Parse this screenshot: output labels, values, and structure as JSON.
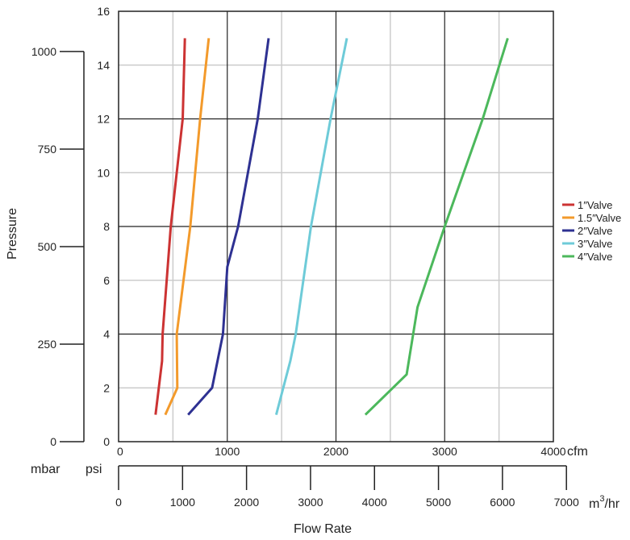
{
  "chart_data": {
    "type": "line",
    "xlabel": "Flow Rate",
    "ylabel": "Pressure",
    "x_unit": "cfm",
    "y_unit": "psi",
    "xlim": [
      0,
      4000
    ],
    "ylim": [
      0,
      16
    ],
    "grid": true,
    "legend_position": "right",
    "x_ticks": [
      "0",
      "1000",
      "2000",
      "3000",
      "4000"
    ],
    "y_ticks": [
      "0",
      "2",
      "4",
      "6",
      "8",
      "10",
      "12",
      "14",
      "16"
    ],
    "secondary_x_axis": {
      "unit": "m³/hr",
      "unit_base": "m",
      "unit_sup": "3",
      "unit_tail": "/hr",
      "ticks": [
        0,
        1000,
        2000,
        3000,
        4000,
        5000,
        6000,
        7000
      ],
      "tick_labels": [
        "0",
        "1000",
        "2000",
        "3000",
        "4000",
        "5000",
        "6000",
        "7000"
      ],
      "cfm_per_unit": 0.5886
    },
    "secondary_y_axis": {
      "unit": "mbar",
      "ticks": [
        0,
        250,
        500,
        750,
        1000
      ],
      "tick_labels": [
        "0",
        "250",
        "500",
        "750",
        "1000"
      ],
      "psi_per_unit": 0.0145038
    },
    "series": [
      {
        "name": "1″Valve",
        "color": "#cc3333",
        "x": [
          340,
          400,
          405,
          480,
          590,
          610
        ],
        "y": [
          1,
          3,
          4,
          8,
          12,
          15
        ]
      },
      {
        "name": "1.5″Valve",
        "color": "#f39a2b",
        "x": [
          430,
          540,
          535,
          660,
          750,
          830
        ],
        "y": [
          1,
          2,
          4,
          8,
          12,
          15
        ]
      },
      {
        "name": "2″Valve",
        "color": "#2e3192",
        "x": [
          640,
          860,
          960,
          1000,
          1100,
          1280,
          1380
        ],
        "y": [
          1,
          2,
          4,
          6.5,
          8,
          12,
          15
        ]
      },
      {
        "name": "3″Valve",
        "color": "#6ecbd8",
        "x": [
          1450,
          1580,
          1630,
          1770,
          1950,
          2100
        ],
        "y": [
          1,
          3,
          4,
          8,
          12,
          15
        ]
      },
      {
        "name": "4″Valve",
        "color": "#4cb85c",
        "x": [
          2270,
          2650,
          2750,
          3000,
          3350,
          3580
        ],
        "y": [
          1,
          2.5,
          5,
          8,
          12,
          15
        ]
      }
    ]
  }
}
